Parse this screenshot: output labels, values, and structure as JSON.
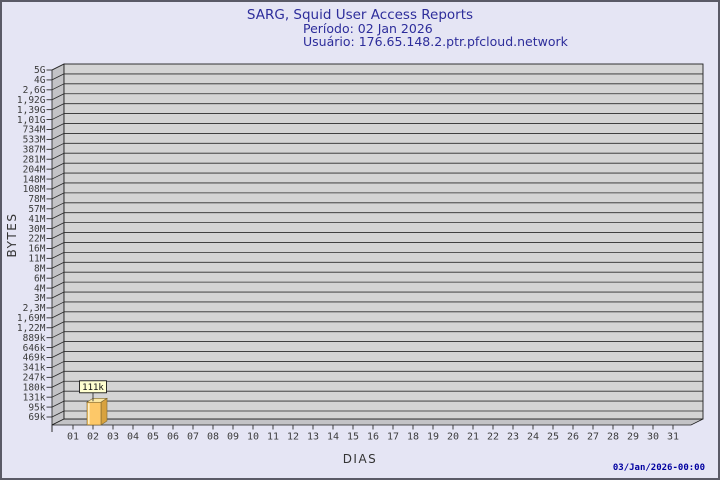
{
  "chart_data": {
    "type": "bar",
    "title": "SARG, Squid User Access Reports",
    "period": "Período: 02 Jan 2026",
    "user": "Usuário: 176.65.148.2.ptr.pfcloud.network",
    "xlabel": "DIAS",
    "ylabel": "BYTES",
    "footer_timestamp": "03/Jan/2026-00:00",
    "y_scale": "log",
    "x_categories": [
      "01",
      "02",
      "03",
      "04",
      "05",
      "06",
      "07",
      "08",
      "09",
      "10",
      "11",
      "12",
      "13",
      "14",
      "15",
      "16",
      "17",
      "18",
      "19",
      "20",
      "21",
      "22",
      "23",
      "24",
      "25",
      "26",
      "27",
      "28",
      "29",
      "30",
      "31"
    ],
    "y_ticks": [
      {
        "label": "5G",
        "value": 5000000000
      },
      {
        "label": "4G",
        "value": 3600000000
      },
      {
        "label": "2,6G",
        "value": 2600000000
      },
      {
        "label": "1,92G",
        "value": 1920000000
      },
      {
        "label": "1,39G",
        "value": 1390000000
      },
      {
        "label": "1,01G",
        "value": 1010000000
      },
      {
        "label": "734M",
        "value": 734000000
      },
      {
        "label": "533M",
        "value": 533000000
      },
      {
        "label": "387M",
        "value": 387000000
      },
      {
        "label": "281M",
        "value": 281000000
      },
      {
        "label": "204M",
        "value": 204000000
      },
      {
        "label": "148M",
        "value": 148000000
      },
      {
        "label": "108M",
        "value": 108000000
      },
      {
        "label": "78M",
        "value": 78000000
      },
      {
        "label": "57M",
        "value": 57000000
      },
      {
        "label": "41M",
        "value": 41000000
      },
      {
        "label": "30M",
        "value": 30000000
      },
      {
        "label": "22M",
        "value": 22000000
      },
      {
        "label": "16M",
        "value": 16000000
      },
      {
        "label": "11M",
        "value": 11000000
      },
      {
        "label": "8M",
        "value": 8000000
      },
      {
        "label": "6M",
        "value": 6000000
      },
      {
        "label": "4M",
        "value": 4400000
      },
      {
        "label": "3M",
        "value": 3200000
      },
      {
        "label": "2,3M",
        "value": 2300000
      },
      {
        "label": "1,69M",
        "value": 1690000
      },
      {
        "label": "1,22M",
        "value": 1220000
      },
      {
        "label": "889k",
        "value": 889000
      },
      {
        "label": "646k",
        "value": 646000
      },
      {
        "label": "469k",
        "value": 469000
      },
      {
        "label": "341k",
        "value": 341000
      },
      {
        "label": "247k",
        "value": 247000
      },
      {
        "label": "180k",
        "value": 180000
      },
      {
        "label": "131k",
        "value": 131000
      },
      {
        "label": "95k",
        "value": 95000
      },
      {
        "label": "69k",
        "value": 69000
      }
    ],
    "series": [
      {
        "name": "bytes-per-day",
        "data": [
          {
            "day": "02",
            "bytes": 111000,
            "label": "111k"
          }
        ]
      }
    ],
    "colors": {
      "page_bg": "#e5e5f4",
      "page_border": "#5a5a66",
      "title_text": "#2d2d9b",
      "date_text": "#0000a0",
      "wall_back": "#d4d4d4",
      "wall_side": "#c3c3c6",
      "wall_edge": "#1f1f1f",
      "grid": "#2b2b2b",
      "axis_text": "#3c3c3c",
      "bar_front": "#fdc868",
      "bar_side": "#d8a23f",
      "bar_top": "#fbe8a4",
      "bar_highlight": "#fff0c4",
      "bar_edge": "#7a6530",
      "label_box_bg": "#ffffd0"
    }
  }
}
